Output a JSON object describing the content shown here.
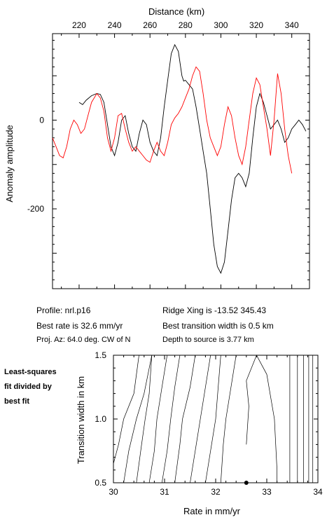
{
  "chart_data": [
    {
      "type": "line",
      "xlabel": "Distance (km)",
      "ylabel": "Anomaly amplitude",
      "xlim": [
        205,
        350
      ],
      "ylim": [
        -380,
        195
      ],
      "x_ticks": [
        220,
        240,
        260,
        280,
        300,
        320,
        340
      ],
      "y_ticks": [
        0,
        -200
      ],
      "axis_location": {
        "x": "top",
        "y": "left"
      },
      "grid": false,
      "series": [
        {
          "color": "#000000",
          "x": [
            220,
            222,
            224,
            227,
            230,
            232,
            234,
            236,
            238,
            240,
            242,
            244,
            246,
            248,
            250,
            252,
            254,
            256,
            258,
            260,
            262,
            264,
            266,
            268,
            270,
            272,
            274,
            276,
            278,
            279,
            280,
            282,
            284,
            286,
            288,
            290,
            292,
            294,
            296,
            298,
            300,
            302,
            304,
            306,
            308,
            310,
            312,
            314,
            316,
            318,
            320,
            322,
            324,
            326,
            328,
            330,
            332,
            334,
            336,
            338,
            340,
            342,
            344,
            346,
            348
          ],
          "y": [
            40,
            35,
            45,
            55,
            60,
            58,
            40,
            -10,
            -60,
            -80,
            -50,
            0,
            10,
            -30,
            -60,
            -70,
            -30,
            0,
            -10,
            -50,
            -70,
            -80,
            -40,
            30,
            90,
            150,
            170,
            155,
            100,
            88,
            90,
            80,
            70,
            30,
            -20,
            -70,
            -120,
            -200,
            -280,
            -330,
            -345,
            -320,
            -250,
            -180,
            -130,
            -120,
            -130,
            -150,
            -120,
            -40,
            30,
            60,
            40,
            10,
            -20,
            -10,
            0,
            -20,
            -50,
            -40,
            -20,
            -10,
            0,
            -10,
            -25
          ]
        },
        {
          "color": "#ff0000",
          "x": [
            205,
            207,
            209,
            211,
            213,
            215,
            217,
            219,
            221,
            223,
            225,
            227,
            230,
            232,
            234,
            236,
            238,
            240,
            242,
            244,
            246,
            248,
            250,
            252,
            254,
            256,
            258,
            260,
            262,
            264,
            266,
            268,
            270,
            272,
            274,
            276,
            278,
            280,
            282,
            284,
            286,
            288,
            290,
            292,
            294,
            296,
            298,
            300,
            302,
            304,
            306,
            308,
            310,
            312,
            314,
            316,
            318,
            320,
            322,
            324,
            326,
            328,
            330,
            332,
            334,
            336,
            338,
            340
          ],
          "y": [
            -40,
            -60,
            -80,
            -85,
            -60,
            -20,
            0,
            -10,
            -30,
            -20,
            10,
            40,
            60,
            50,
            20,
            -40,
            -70,
            -40,
            10,
            15,
            -20,
            -50,
            -70,
            -60,
            -70,
            -80,
            -90,
            -95,
            -70,
            -50,
            -70,
            -80,
            -50,
            -10,
            5,
            15,
            30,
            50,
            70,
            100,
            120,
            110,
            60,
            0,
            -40,
            -60,
            -80,
            -60,
            -10,
            30,
            10,
            -40,
            -80,
            -100,
            -60,
            0,
            60,
            95,
            80,
            30,
            -20,
            -80,
            0,
            105,
            60,
            -20,
            -80,
            -120
          ]
        }
      ]
    },
    {
      "type": "line",
      "xlabel": "Rate in mm/yr",
      "ylabel": "Transition width in km",
      "xlim": [
        30,
        34
      ],
      "ylim": [
        0.5,
        1.5
      ],
      "x_ticks": [
        30,
        31,
        32,
        33,
        34
      ],
      "y_ticks": [
        0.5,
        1.0,
        1.5
      ],
      "best_point": {
        "x": 32.6,
        "y": 0.5
      },
      "contours": [
        [
          [
            30.0,
            0.65
          ],
          [
            30.1,
            0.8
          ],
          [
            30.2,
            1.0
          ],
          [
            30.4,
            1.2
          ],
          [
            30.5,
            1.5
          ]
        ],
        [
          [
            30.2,
            0.5
          ],
          [
            30.3,
            0.75
          ],
          [
            30.45,
            1.0
          ],
          [
            30.6,
            1.2
          ],
          [
            30.75,
            1.5
          ]
        ],
        [
          [
            30.45,
            0.5
          ],
          [
            30.55,
            0.8
          ],
          [
            30.62,
            1.0
          ],
          [
            30.7,
            1.2
          ],
          [
            30.75,
            1.5
          ]
        ],
        [
          [
            30.7,
            0.5
          ],
          [
            30.8,
            0.75
          ],
          [
            30.85,
            1.0
          ],
          [
            30.95,
            1.25
          ],
          [
            31.05,
            1.5
          ]
        ],
        [
          [
            30.95,
            0.5
          ],
          [
            31.05,
            0.75
          ],
          [
            31.12,
            1.0
          ],
          [
            31.2,
            1.25
          ],
          [
            31.3,
            1.5
          ]
        ],
        [
          [
            31.2,
            0.5
          ],
          [
            31.3,
            0.8
          ],
          [
            31.35,
            1.0
          ],
          [
            31.5,
            1.25
          ],
          [
            31.6,
            1.5
          ]
        ],
        [
          [
            31.5,
            0.5
          ],
          [
            31.6,
            0.75
          ],
          [
            31.7,
            1.0
          ],
          [
            31.8,
            1.25
          ],
          [
            31.9,
            1.5
          ]
        ],
        [
          [
            31.8,
            0.5
          ],
          [
            31.9,
            0.75
          ],
          [
            32.0,
            1.0
          ],
          [
            32.05,
            1.25
          ],
          [
            32.1,
            1.5
          ]
        ],
        [
          [
            32.1,
            0.5
          ],
          [
            32.15,
            0.8
          ],
          [
            32.2,
            1.0
          ],
          [
            32.3,
            1.25
          ],
          [
            32.4,
            1.5
          ]
        ],
        [
          [
            32.6,
            0.8
          ],
          [
            32.65,
            1.1
          ],
          [
            32.6,
            1.3
          ],
          [
            32.8,
            1.5
          ],
          [
            33.0,
            1.35
          ],
          [
            33.15,
            1.0
          ],
          [
            33.2,
            0.6
          ],
          [
            33.2,
            0.5
          ]
        ],
        [
          [
            33.45,
            0.5
          ],
          [
            33.45,
            1.0
          ],
          [
            33.45,
            1.5
          ]
        ],
        [
          [
            33.6,
            0.5
          ],
          [
            33.6,
            1.0
          ],
          [
            33.6,
            1.5
          ]
        ],
        [
          [
            33.72,
            0.5
          ],
          [
            33.72,
            1.0
          ],
          [
            33.72,
            1.5
          ]
        ],
        [
          [
            33.82,
            0.5
          ],
          [
            33.82,
            1.0
          ],
          [
            33.82,
            1.5
          ]
        ],
        [
          [
            33.9,
            0.5
          ],
          [
            33.9,
            1.0
          ],
          [
            33.9,
            1.5
          ]
        ]
      ]
    }
  ],
  "info": {
    "profile": "Profile: nrl.p16",
    "best_rate": "Best rate is 32.6 mm/yr",
    "proj_az": "Proj. Az: 64.0 deg. CW of N",
    "ridge_xing": "Ridge Xing is -13.52 345.43",
    "best_transition": "Best transition width is 0.5 km",
    "depth": "Depth to source is   3.77 km",
    "side_note_lines": [
      "Least-squares",
      "fit divided by",
      "best fit"
    ]
  }
}
